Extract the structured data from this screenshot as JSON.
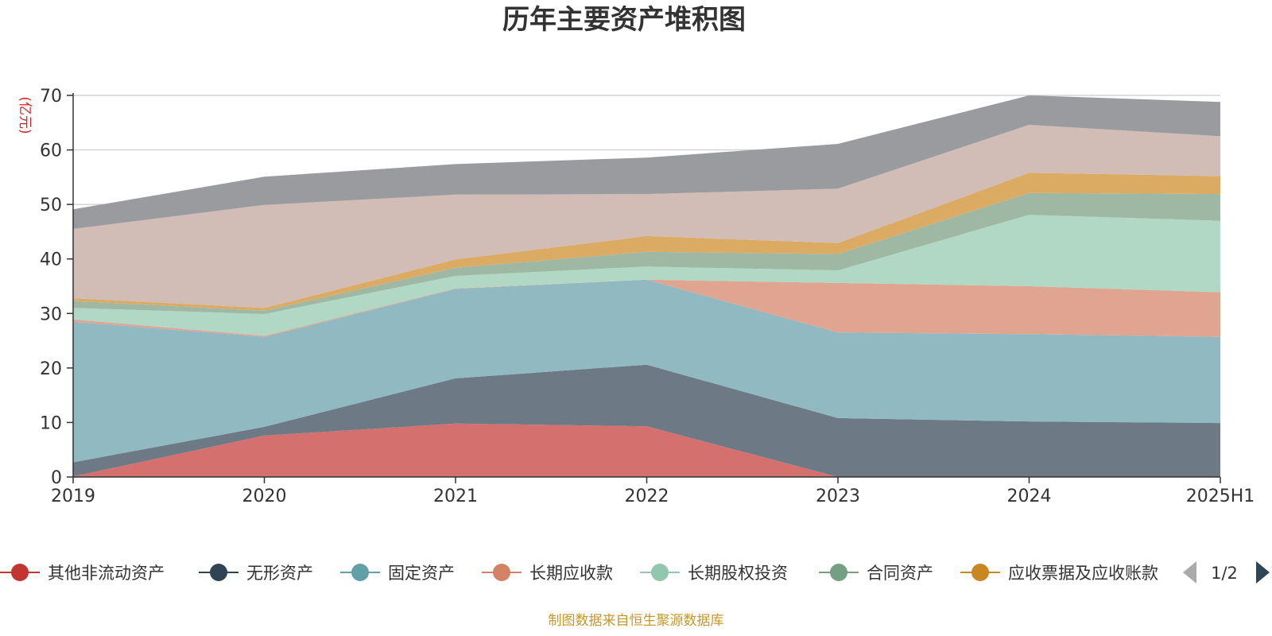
{
  "title": "历年主要资产堆积图",
  "unit_label": "(亿元)",
  "source_note": "制图数据来自恒生聚源数据库",
  "legend_pager": {
    "label": "1/2",
    "prev_icon": "triangle-left-icon",
    "next_icon": "triangle-right-icon"
  },
  "chart_data": {
    "type": "area",
    "stacked": true,
    "title": "历年主要资产堆积图",
    "ylabel": "(亿元)",
    "xlabel": "",
    "categories": [
      "2019",
      "2020",
      "2021",
      "2022",
      "2023",
      "2024",
      "2025H1"
    ],
    "ylim": [
      0,
      70
    ],
    "yticks": [
      0,
      10,
      20,
      30,
      40,
      50,
      60,
      70
    ],
    "grid": true,
    "legend_position": "bottom",
    "series": [
      {
        "name": "其他非流动资产",
        "color": "#c23531",
        "fill": "#d4716e",
        "values": [
          0.1,
          7.6,
          9.8,
          9.3,
          0.0,
          0.0,
          0.0
        ]
      },
      {
        "name": "无形资产",
        "color": "#2f4554",
        "fill": "#6d7a85",
        "values": [
          2.6,
          1.6,
          8.3,
          11.3,
          10.8,
          10.2,
          9.9
        ]
      },
      {
        "name": "固定资产",
        "color": "#61a0a8",
        "fill": "#90b9c1",
        "values": [
          25.8,
          16.5,
          16.4,
          15.6,
          15.7,
          16.0,
          15.8
        ]
      },
      {
        "name": "长期应收款",
        "color": "#d48265",
        "fill": "#e0a590",
        "values": [
          0.4,
          0.2,
          0.1,
          0.0,
          9.1,
          8.8,
          8.2
        ]
      },
      {
        "name": "长期股权投资",
        "color": "#91c7ae",
        "fill": "#b0d8c5",
        "values": [
          2.1,
          4.0,
          2.3,
          2.4,
          2.3,
          13.1,
          13.1
        ]
      },
      {
        "name": "合同资产",
        "color": "#749f83",
        "fill": "#9eb8a4",
        "values": [
          1.3,
          0.6,
          1.5,
          2.7,
          3.0,
          4.0,
          4.9
        ]
      },
      {
        "name": "应收票据及应收账款",
        "color": "#ca8622",
        "fill": "#dbaa63",
        "values": [
          0.5,
          0.5,
          1.5,
          2.9,
          2.0,
          3.7,
          3.3
        ]
      },
      {
        "name": "",
        "color": "#bda29a",
        "fill": "#d1bcb6",
        "values": [
          12.7,
          18.9,
          11.9,
          7.7,
          10.0,
          8.8,
          7.3
        ]
      },
      {
        "name": "",
        "color": "#6e7074",
        "fill": "#9a9b9e",
        "values": [
          3.6,
          5.2,
          5.6,
          6.7,
          8.2,
          5.4,
          6.3
        ]
      }
    ]
  }
}
